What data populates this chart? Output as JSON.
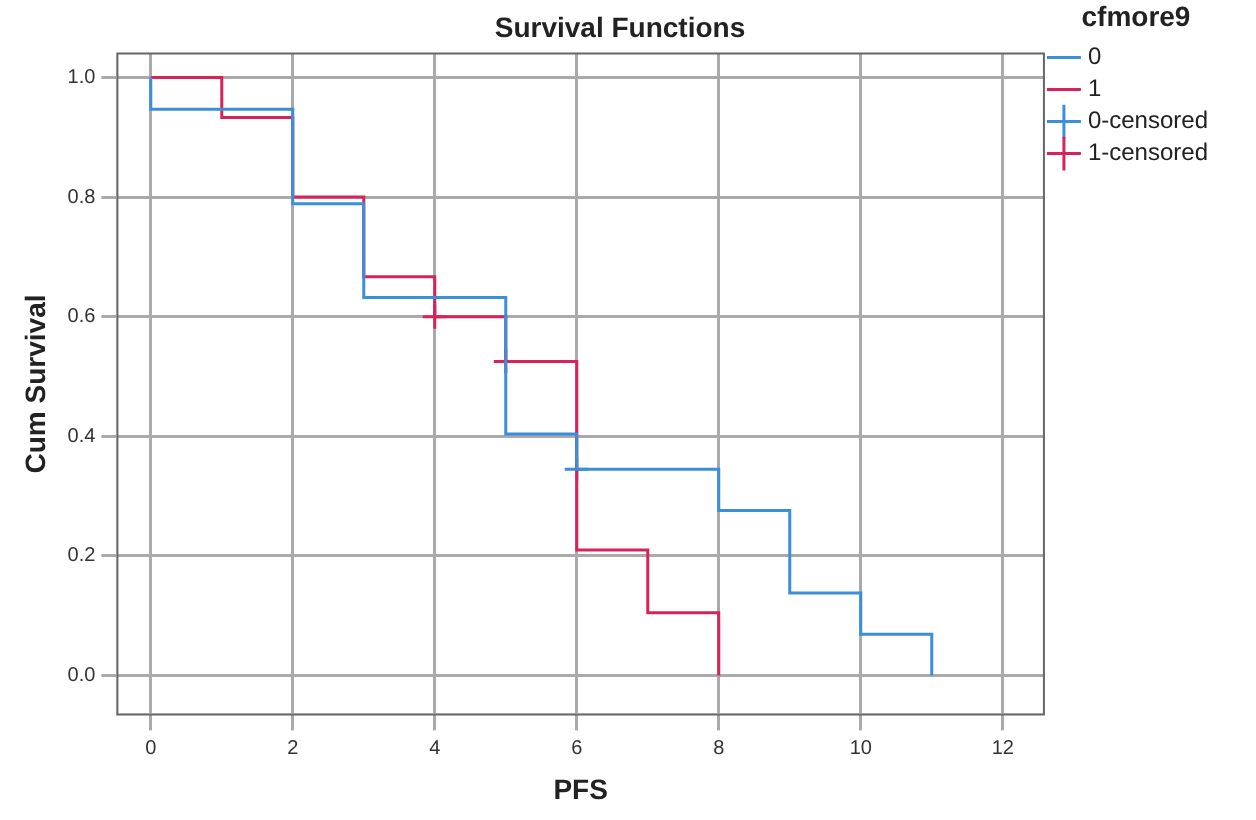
{
  "chart_data": {
    "type": "step",
    "title": "Survival Functions",
    "xlabel": "PFS",
    "ylabel": "Cum Survival",
    "legend_title": "cfmore9",
    "series": [
      {
        "name": "0",
        "type": "step",
        "color": "#3a8fd8",
        "x": [
          0,
          0,
          2,
          3,
          5,
          6,
          8,
          9,
          10,
          11
        ],
        "values": [
          1,
          0.947,
          0.789,
          0.632,
          0.404,
          0.345,
          0.276,
          0.138,
          0.069,
          0
        ]
      },
      {
        "name": "1",
        "type": "step",
        "color": "#d6245a",
        "x": [
          0,
          1,
          2,
          3,
          4,
          5,
          6,
          7,
          8
        ],
        "values": [
          1,
          0.933,
          0.8,
          0.667,
          0.6,
          0.525,
          0.21,
          0.105,
          0
        ]
      },
      {
        "name": "0-censored",
        "type": "scatter",
        "marker": "cross",
        "color": "#3a8fd8",
        "x": [
          6
        ],
        "values": [
          0.345
        ]
      },
      {
        "name": "1-censored",
        "type": "scatter",
        "marker": "cross",
        "color": "#d6245a",
        "x": [
          4,
          5
        ],
        "values": [
          0.6,
          0.525
        ]
      }
    ],
    "xlim": [
      -0.47,
      12.58
    ],
    "xticks": [
      0,
      2,
      4,
      6,
      8,
      10,
      12
    ],
    "ylim": [
      -0.065,
      1.04
    ],
    "yticks": [
      {
        "value": 0,
        "label": "0.0"
      },
      {
        "value": 0.2,
        "label": "0.2"
      },
      {
        "value": 0.4,
        "label": "0.4"
      },
      {
        "value": 0.6,
        "label": "0.6"
      },
      {
        "value": 0.8,
        "label": "0.8"
      },
      {
        "value": 1,
        "label": "1.0"
      }
    ],
    "grid": true,
    "legend": "right"
  }
}
